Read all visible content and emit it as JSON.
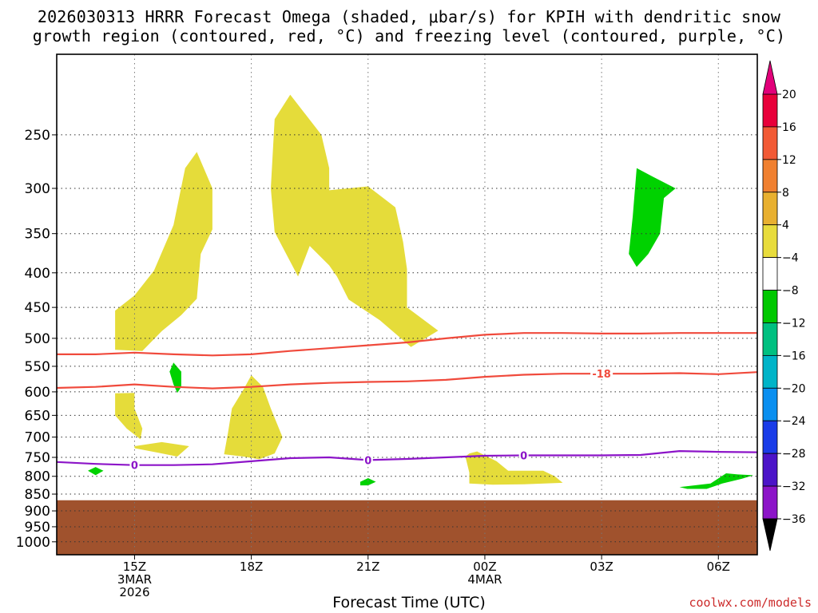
{
  "title": {
    "line1": "2026030313 HRRR Forecast Omega (shaded, μbar/s) for KPIH with dendritic snow",
    "line2": "growth region (contoured, red, °C) and freezing level (contoured, purple, °C)"
  },
  "xlabel": "Forecast Time (UTC)",
  "credit": "coolwx.com/models",
  "chart_data": {
    "type": "contour",
    "x_unit": "hour UTC since 2026-03-03 00Z",
    "xlim": [
      13.0,
      31.0
    ],
    "y_unit": "hPa",
    "ylim": [
      1045,
      190
    ],
    "log_y": true,
    "grid": true,
    "x_ticks": [
      {
        "x": 15,
        "lines": [
          "15Z",
          "3MAR",
          "2026"
        ]
      },
      {
        "x": 18,
        "lines": [
          "18Z"
        ]
      },
      {
        "x": 21,
        "lines": [
          "21Z"
        ]
      },
      {
        "x": 24,
        "lines": [
          "00Z",
          "4MAR"
        ]
      },
      {
        "x": 27,
        "lines": [
          "03Z"
        ]
      },
      {
        "x": 30,
        "lines": [
          "06Z"
        ]
      }
    ],
    "y_ticks": [
      250,
      300,
      350,
      400,
      450,
      500,
      550,
      600,
      650,
      700,
      750,
      800,
      850,
      900,
      950,
      1000
    ],
    "y_tick_labels": [
      "250",
      "300",
      "350",
      "400",
      "450",
      "500",
      "550",
      "600",
      "650",
      "700",
      "750",
      "800",
      "850",
      "900",
      "950",
      "1000"
    ],
    "colorbar": {
      "levels": [
        "20",
        "16",
        "12",
        "8",
        "4",
        "−4",
        "−8",
        "−12",
        "−16",
        "−20",
        "−24",
        "−28",
        "−32",
        "−36"
      ],
      "colors": [
        "#e8003a",
        "#f25a35",
        "#f08030",
        "#e8b030",
        "#e8dc3c",
        "#ffffff",
        "#00c800",
        "#00c080",
        "#00b4c8",
        "#0a8ff0",
        "#1a3ce8",
        "#4c14c8",
        "#8c14c8",
        "#a0a0a0"
      ],
      "top_color": "#e2007a",
      "bottom_color": "#000000"
    },
    "ground": {
      "top_hpa": 868,
      "color": "#a0522d"
    },
    "omega_positive": {
      "color": "#e5dc3a",
      "level": 4,
      "regions": [
        [
          [
            14.5,
            520
          ],
          [
            14.5,
            455
          ],
          [
            15.0,
            432
          ],
          [
            15.5,
            397
          ],
          [
            16.0,
            340
          ],
          [
            16.3,
            280
          ],
          [
            16.6,
            265
          ],
          [
            17.0,
            300
          ],
          [
            17.0,
            345
          ],
          [
            16.7,
            375
          ],
          [
            16.6,
            437
          ],
          [
            16.2,
            462
          ],
          [
            15.7,
            488
          ],
          [
            15.2,
            522
          ]
        ],
        [
          [
            14.5,
            603
          ],
          [
            15.0,
            602
          ],
          [
            15.0,
            635
          ],
          [
            15.2,
            680
          ],
          [
            15.15,
            705
          ],
          [
            14.8,
            680
          ],
          [
            14.5,
            650
          ]
        ],
        [
          [
            15.0,
            722
          ],
          [
            15.7,
            712
          ],
          [
            16.4,
            722
          ],
          [
            16.1,
            748
          ],
          [
            15.6,
            738
          ],
          [
            15.0,
            727
          ]
        ],
        [
          [
            17.3,
            742
          ],
          [
            17.4,
            690
          ],
          [
            17.5,
            635
          ],
          [
            17.8,
            595
          ],
          [
            18.0,
            567
          ],
          [
            18.3,
            590
          ],
          [
            18.5,
            635
          ],
          [
            18.8,
            700
          ],
          [
            18.6,
            740
          ],
          [
            18.2,
            755
          ],
          [
            17.8,
            748
          ]
        ],
        [
          [
            18.5,
            300
          ],
          [
            18.6,
            237
          ],
          [
            19.0,
            218
          ],
          [
            19.8,
            250
          ],
          [
            20.0,
            280
          ],
          [
            20.0,
            302
          ],
          [
            21.0,
            298
          ],
          [
            21.7,
            320
          ],
          [
            21.9,
            360
          ],
          [
            22.0,
            395
          ],
          [
            22.0,
            450
          ],
          [
            22.8,
            487
          ],
          [
            22.1,
            515
          ],
          [
            21.3,
            470
          ],
          [
            20.5,
            438
          ],
          [
            20.2,
            405
          ],
          [
            20.0,
            390
          ],
          [
            19.5,
            365
          ],
          [
            19.2,
            405
          ],
          [
            18.6,
            348
          ]
        ],
        [
          [
            23.5,
            748
          ],
          [
            23.6,
            740
          ],
          [
            23.8,
            735
          ],
          [
            24.3,
            760
          ],
          [
            24.6,
            785
          ],
          [
            25.5,
            785
          ],
          [
            25.8,
            800
          ],
          [
            26.0,
            818
          ],
          [
            25.0,
            822
          ],
          [
            24.2,
            823
          ],
          [
            23.6,
            820
          ],
          [
            23.6,
            790
          ]
        ]
      ]
    },
    "omega_negative": {
      "color": "#00d200",
      "level": -4,
      "regions": [
        [
          [
            16.0,
            585
          ],
          [
            15.9,
            560
          ],
          [
            16.0,
            543
          ],
          [
            16.2,
            560
          ],
          [
            16.2,
            590
          ],
          [
            16.1,
            602
          ]
        ],
        [
          [
            13.8,
            785
          ],
          [
            14.0,
            775
          ],
          [
            14.2,
            785
          ],
          [
            14.0,
            797
          ]
        ],
        [
          [
            20.8,
            815
          ],
          [
            21.0,
            805
          ],
          [
            21.2,
            815
          ],
          [
            21.0,
            825
          ],
          [
            20.8,
            825
          ]
        ],
        [
          [
            27.7,
            375
          ],
          [
            27.8,
            330
          ],
          [
            27.9,
            280
          ],
          [
            28.3,
            288
          ],
          [
            28.9,
            300
          ],
          [
            28.6,
            310
          ],
          [
            28.5,
            350
          ],
          [
            28.2,
            375
          ],
          [
            27.9,
            392
          ]
        ],
        [
          [
            29.0,
            830
          ],
          [
            29.8,
            820
          ],
          [
            30.2,
            792
          ],
          [
            30.5,
            795
          ],
          [
            30.9,
            797
          ],
          [
            30.6,
            807
          ],
          [
            30.1,
            820
          ],
          [
            29.7,
            835
          ],
          [
            29.2,
            835
          ]
        ]
      ]
    },
    "dgz_lines": {
      "color": "#f04a3c",
      "lines": [
        {
          "label": "",
          "points": [
            [
              13.0,
              528
            ],
            [
              14.0,
              528
            ],
            [
              15.0,
              525
            ],
            [
              16.0,
              528
            ],
            [
              17.0,
              530
            ],
            [
              18.0,
              528
            ],
            [
              19.0,
              522
            ],
            [
              20.0,
              517
            ],
            [
              21.0,
              512
            ],
            [
              22.0,
              507
            ],
            [
              23.0,
              500
            ],
            [
              24.0,
              494
            ],
            [
              25.0,
              491
            ],
            [
              26.0,
              491
            ],
            [
              27.0,
              492
            ],
            [
              28.0,
              492
            ],
            [
              29.0,
              491
            ],
            [
              30.0,
              491
            ],
            [
              31.0,
              491
            ]
          ]
        },
        {
          "label": "-18",
          "label_x": 27.0,
          "points": [
            [
              13.0,
              592
            ],
            [
              14.0,
              590
            ],
            [
              15.0,
              585
            ],
            [
              16.0,
              590
            ],
            [
              17.0,
              593
            ],
            [
              18.0,
              590
            ],
            [
              19.0,
              585
            ],
            [
              20.0,
              582
            ],
            [
              21.0,
              580
            ],
            [
              22.0,
              579
            ],
            [
              23.0,
              576
            ],
            [
              24.0,
              570
            ],
            [
              25.0,
              566
            ],
            [
              26.0,
              564
            ],
            [
              27.0,
              564
            ],
            [
              28.0,
              564
            ],
            [
              29.0,
              563
            ],
            [
              30.0,
              565
            ],
            [
              31.0,
              561
            ]
          ]
        }
      ]
    },
    "freezing_level": {
      "color": "#8c14c8",
      "label": "0",
      "label_x": [
        15.0,
        21.0,
        25.0
      ],
      "points": [
        [
          13.0,
          762
        ],
        [
          14.0,
          767
        ],
        [
          15.0,
          770
        ],
        [
          16.0,
          770
        ],
        [
          17.0,
          768
        ],
        [
          18.0,
          760
        ],
        [
          19.0,
          752
        ],
        [
          20.0,
          750
        ],
        [
          21.0,
          757
        ],
        [
          22.0,
          754
        ],
        [
          23.0,
          750
        ],
        [
          24.0,
          746
        ],
        [
          25.0,
          745
        ],
        [
          26.0,
          745
        ],
        [
          27.0,
          745
        ],
        [
          28.0,
          744
        ],
        [
          29.0,
          734
        ],
        [
          30.0,
          736
        ],
        [
          31.0,
          737
        ]
      ]
    }
  }
}
